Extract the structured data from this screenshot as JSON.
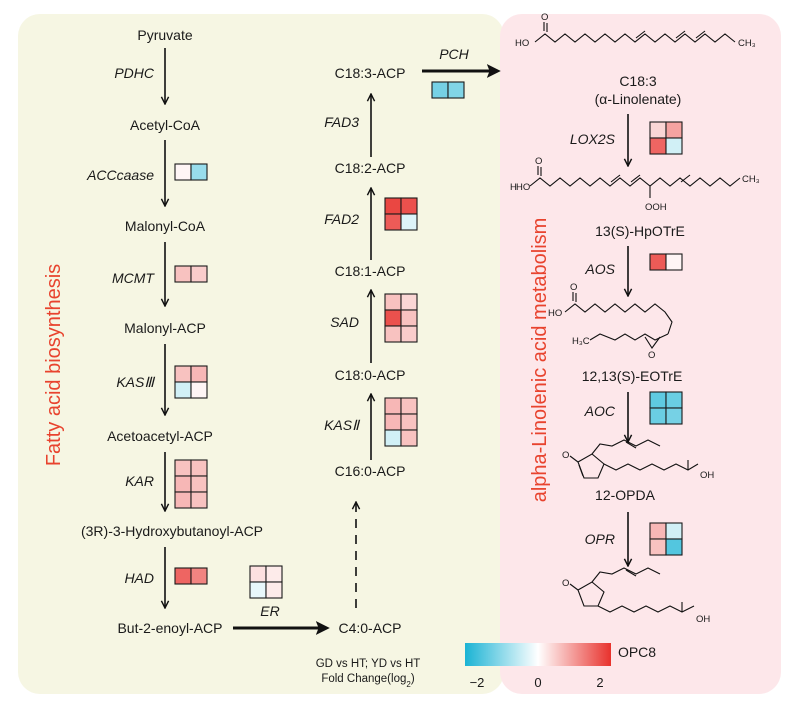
{
  "panels": {
    "left_title": "Fatty acid biosynthesis",
    "right_title": "alpha-Linolenic acid metabolism",
    "left_color": "#f6f6e3",
    "right_color": "#fde7ea"
  },
  "metabolites": {
    "pyruvate": "Pyruvate",
    "acetyl_coa": "Acetyl-CoA",
    "malonyl_coa": "Malonyl-CoA",
    "malonyl_acp": "Malonyl-ACP",
    "acetoacetyl_acp": "Acetoacetyl-ACP",
    "hydroxybutanoyl_acp": "(3R)-3-Hydroxybutanoyl-ACP",
    "butenoyl_acp": "But-2-enoyl-ACP",
    "c4_acp": "C4:0-ACP",
    "c16_acp": "C16:0-ACP",
    "c18_0_acp": "C18:0-ACP",
    "c18_1_acp": "C18:1-ACP",
    "c18_2_acp": "C18:2-ACP",
    "c18_3_acp": "C18:3-ACP",
    "c18_3": "C18:3",
    "linolenate": "(α-Linolenate)",
    "hpotre": "13(S)-HpOTrE",
    "eotre": "12,13(S)-EOTrE",
    "opda": "12-OPDA",
    "opc8": "OPC8"
  },
  "enzymes": {
    "pdhc": "PDHC",
    "acccaase": "ACCcaase",
    "mcmt": "MCMT",
    "kas3": "KASⅢ",
    "kar": "KAR",
    "had": "HAD",
    "er": "ER",
    "kas2": "KASⅡ",
    "sad": "SAD",
    "fad2": "FAD2",
    "fad3": "FAD3",
    "pch": "PCH",
    "lox2s": "LOX2S",
    "aos": "AOS",
    "aoc": "AOC",
    "opr": "OPR"
  },
  "chem_labels": {
    "ho": "HO",
    "o": "O",
    "ch3": "CH₃",
    "h3c": "H₃C",
    "ooh": "OOH",
    "oh": "OH",
    "h": "H"
  },
  "legend": {
    "line1": "GD vs HT; YD vs HT",
    "line2": "Fold Change(log",
    "line2_sub": "2",
    "line2_end": ")",
    "min_label": "−2",
    "mid_label": "0",
    "max_label": "2",
    "min": -2,
    "max": 2,
    "color_low": "#1ab3d4",
    "color_mid": "#ffffff",
    "color_high": "#e8322d"
  },
  "heatmaps": {
    "acccaase": {
      "cols": 2,
      "values": [
        [
          0.1,
          -0.9
        ]
      ]
    },
    "mcmt": {
      "cols": 2,
      "values": [
        [
          0.6,
          0.5
        ]
      ]
    },
    "kas3": {
      "cols": 2,
      "values": [
        [
          0.6,
          0.7
        ],
        [
          -0.4,
          0.1
        ]
      ]
    },
    "kar": {
      "cols": 2,
      "values": [
        [
          0.6,
          0.6
        ],
        [
          0.7,
          0.6
        ],
        [
          0.7,
          0.6
        ]
      ]
    },
    "had": {
      "cols": 2,
      "values": [
        [
          1.5,
          1.2
        ]
      ]
    },
    "er": {
      "cols": 2,
      "values": [
        [
          0.3,
          0.2
        ],
        [
          -0.2,
          0.2
        ]
      ]
    },
    "kas2": {
      "cols": 2,
      "values": [
        [
          0.7,
          0.6
        ],
        [
          0.7,
          0.6
        ],
        [
          -0.4,
          0.6
        ]
      ]
    },
    "sad": {
      "cols": 2,
      "values": [
        [
          0.6,
          0.4
        ],
        [
          1.7,
          0.6
        ],
        [
          0.6,
          0.5
        ]
      ]
    },
    "fad2": {
      "cols": 2,
      "values": [
        [
          1.8,
          1.7
        ],
        [
          1.6,
          -0.3
        ]
      ]
    },
    "pch": {
      "cols": 2,
      "values": [
        [
          -1.2,
          -1.1
        ]
      ]
    },
    "lox2s": {
      "cols": 2,
      "values": [
        [
          0.4,
          0.9
        ],
        [
          1.5,
          -0.4
        ]
      ]
    },
    "aos": {
      "cols": 2,
      "values": [
        [
          1.6,
          0.1
        ]
      ]
    },
    "aoc": {
      "cols": 2,
      "values": [
        [
          -1.4,
          -1.3
        ],
        [
          -1.3,
          -1.2
        ]
      ]
    },
    "opr": {
      "cols": 2,
      "values": [
        [
          0.7,
          -0.4
        ],
        [
          0.6,
          -1.5
        ]
      ]
    }
  }
}
